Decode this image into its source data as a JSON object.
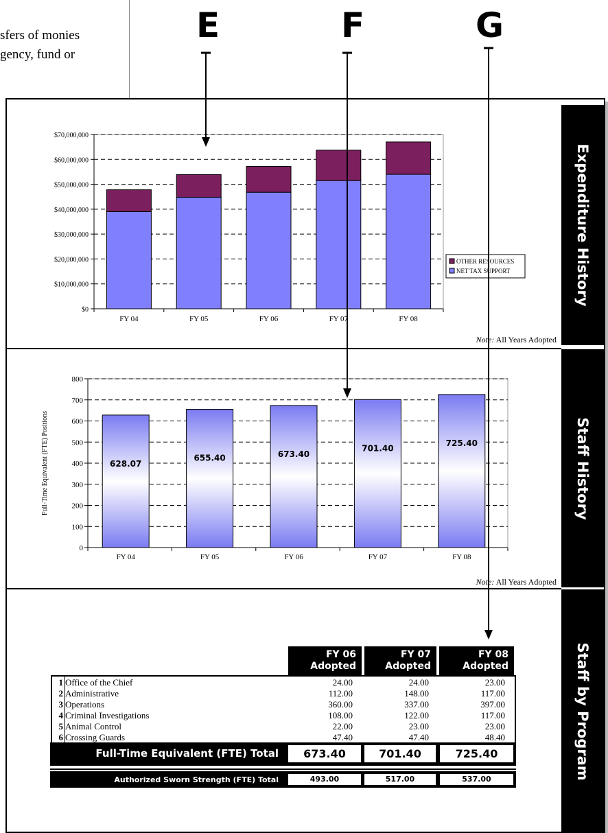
{
  "page_fragment": {
    "line1": "sfers of monies",
    "line2": "gency, fund or"
  },
  "callouts": {
    "e": "E",
    "f": "F",
    "g": "G"
  },
  "colors": {
    "other_resources": "#7b1f5e",
    "net_tax_support": "#8080ff",
    "tab_bg": "#000000"
  },
  "side_tabs": {
    "expenditure": "Expenditure History",
    "staff": "Staff History",
    "program": "Staff by Program"
  },
  "notes": {
    "prefix": "Note:",
    "text": "All Years Adopted"
  },
  "chart_data": [
    {
      "type": "bar",
      "stacked": true,
      "categories": [
        "FY 04",
        "FY 05",
        "FY 06",
        "FY 07",
        "FY 08"
      ],
      "series": [
        {
          "name": "NET TAX SUPPORT",
          "values": [
            39000000,
            44800000,
            46800000,
            51500000,
            54000000
          ]
        },
        {
          "name": "OTHER RESOURCES",
          "values": [
            8800000,
            9100000,
            10400000,
            12200000,
            13000000
          ]
        }
      ],
      "yticks": [
        "$0",
        "$10,000,000",
        "$20,000,000",
        "$30,000,000",
        "$40,000,000",
        "$50,000,000",
        "$60,000,000",
        "$70,000,000"
      ],
      "ylim": [
        0,
        70000000
      ],
      "grid": true,
      "legend": "right"
    },
    {
      "type": "bar",
      "categories": [
        "FY 04",
        "FY 05",
        "FY 06",
        "FY 07",
        "FY 08"
      ],
      "values": [
        628.07,
        655.4,
        673.4,
        701.4,
        725.4
      ],
      "labels": [
        "628.07",
        "655.40",
        "673.40",
        "701.40",
        "725.40"
      ],
      "ylabel": "Full-Time Equivalent (FTE) Positions",
      "yticks": [
        "0",
        "100",
        "200",
        "300",
        "400",
        "500",
        "600",
        "700",
        "800"
      ],
      "ylim": [
        0,
        800
      ],
      "grid": true
    }
  ],
  "table": {
    "headers": [
      {
        "line1": "FY 06",
        "line2": "Adopted"
      },
      {
        "line1": "FY 07",
        "line2": "Adopted"
      },
      {
        "line1": "FY 08",
        "line2": "Adopted"
      }
    ],
    "rows": [
      {
        "num": "1",
        "name": "Office of the Chief",
        "v": [
          "24.00",
          "24.00",
          "23.00"
        ]
      },
      {
        "num": "2",
        "name": "Administrative",
        "v": [
          "112.00",
          "148.00",
          "117.00"
        ]
      },
      {
        "num": "3",
        "name": "Operations",
        "v": [
          "360.00",
          "337.00",
          "397.00"
        ]
      },
      {
        "num": "4",
        "name": "Criminal Investigations",
        "v": [
          "108.00",
          "122.00",
          "117.00"
        ]
      },
      {
        "num": "5",
        "name": "Animal Control",
        "v": [
          "22.00",
          "23.00",
          "23.00"
        ]
      },
      {
        "num": "6",
        "name": "Crossing Guards",
        "v": [
          "47.40",
          "47.40",
          "48.40"
        ]
      }
    ],
    "fte_total": {
      "label": "Full-Time Equivalent (FTE) Total",
      "v": [
        "673.40",
        "701.40",
        "725.40"
      ]
    },
    "sworn_total": {
      "label": "Authorized Sworn Strength (FTE) Total",
      "v": [
        "493.00",
        "517.00",
        "537.00"
      ]
    }
  }
}
